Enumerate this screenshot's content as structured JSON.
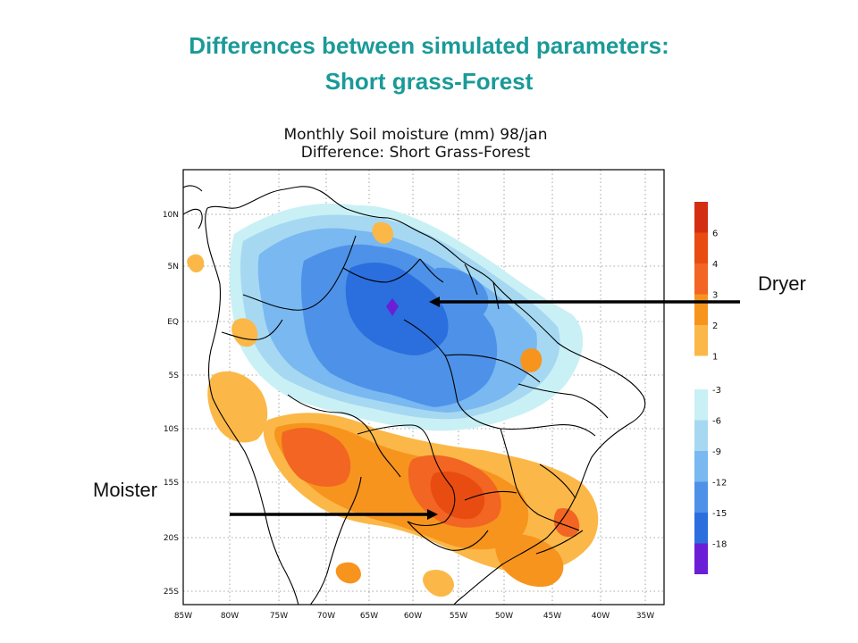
{
  "slide": {
    "title_line1": "Differences between simulated parameters:",
    "title_line2": "Short grass-Forest"
  },
  "map": {
    "title_line1": "Monthly Soil moisture (mm) 98/jan",
    "title_line2": "Difference: Short Grass-Forest",
    "lon_ticks": [
      "85W",
      "80W",
      "75W",
      "70W",
      "65W",
      "60W",
      "55W",
      "50W",
      "45W",
      "40W",
      "35W"
    ],
    "lat_ticks": [
      "10N",
      "5N",
      "EQ",
      "5S",
      "10S",
      "15S",
      "20S",
      "25S"
    ],
    "colors": {
      "pos_1": "#fbb848",
      "pos_2": "#f7941d",
      "pos_3": "#f26522",
      "pos_4": "#e84c10",
      "pos_6": "#d42e12",
      "neg_3": "#c9f0f5",
      "neg_6": "#a6d8f2",
      "neg_9": "#79b8f0",
      "neg_12": "#4d92e8",
      "neg_15": "#2a6fdd",
      "neg_18": "#6a1fd6"
    }
  },
  "colorbar_positive": {
    "labels": [
      "6",
      "4",
      "3",
      "2",
      "1"
    ],
    "colors": [
      "#d42e12",
      "#e84c10",
      "#f26522",
      "#f7941d",
      "#fbb848"
    ]
  },
  "colorbar_negative": {
    "labels": [
      "-3",
      "-6",
      "-9",
      "-12",
      "-15",
      "-18"
    ],
    "colors": [
      "#c9f0f5",
      "#a6d8f2",
      "#79b8f0",
      "#4d92e8",
      "#2a6fdd",
      "#6a1fd6"
    ]
  },
  "annotations": {
    "dryer": "Dryer",
    "moister": "Moister"
  }
}
